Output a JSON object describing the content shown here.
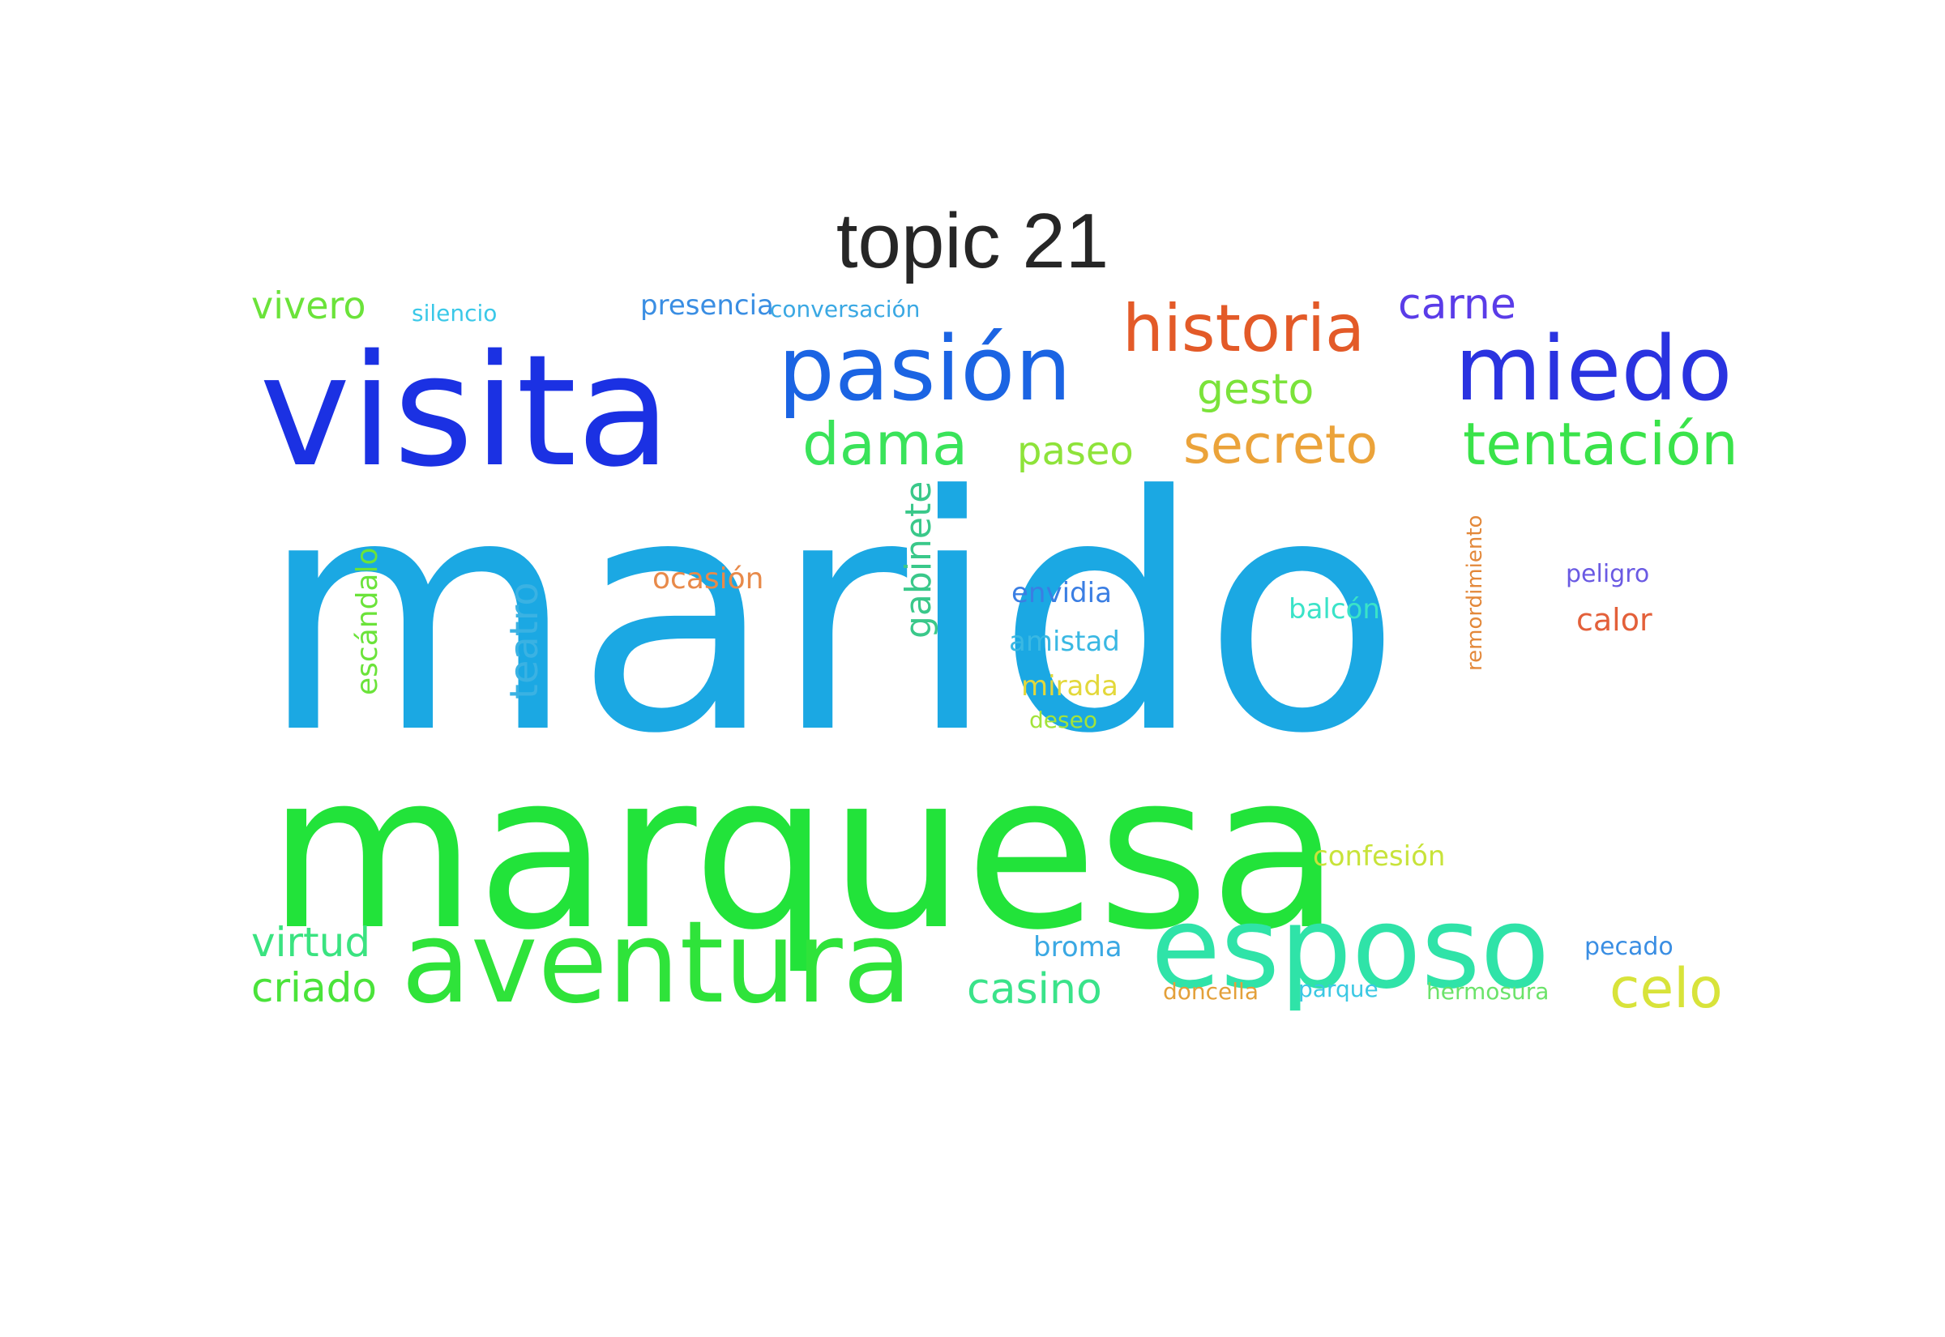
{
  "title": "topic 21",
  "words": [
    {
      "text": "marido",
      "color": "#1ba8e3"
    },
    {
      "text": "marquesa",
      "color": "#22e33a"
    },
    {
      "text": "visita",
      "color": "#1b31e3"
    },
    {
      "text": "pasión",
      "color": "#1b64e3"
    },
    {
      "text": "historia",
      "color": "#e35a28"
    },
    {
      "text": "miedo",
      "color": "#2a33e0"
    },
    {
      "text": "carne",
      "color": "#5a3ce8"
    },
    {
      "text": "gesto",
      "color": "#7be33a"
    },
    {
      "text": "dama",
      "color": "#3ae35a"
    },
    {
      "text": "paseo",
      "color": "#8ee33a"
    },
    {
      "text": "secreto",
      "color": "#eba33a"
    },
    {
      "text": "tentación",
      "color": "#3ae34a"
    },
    {
      "text": "vivero",
      "color": "#6be33a"
    },
    {
      "text": "silencio",
      "color": "#3ac8e8"
    },
    {
      "text": "presencia",
      "color": "#3a8ee3"
    },
    {
      "text": "conversación",
      "color": "#3aa8e3"
    },
    {
      "text": "ocasión",
      "color": "#e88a4a"
    },
    {
      "text": "gabinete",
      "color": "#3ac88a"
    },
    {
      "text": "envidia",
      "color": "#3a7ee3"
    },
    {
      "text": "amistad",
      "color": "#3ab8e3"
    },
    {
      "text": "mirada",
      "color": "#e3d83a"
    },
    {
      "text": "deseo",
      "color": "#a3e33a"
    },
    {
      "text": "escándalo",
      "color": "#6be33a"
    },
    {
      "text": "teatro",
      "color": "#3ab2e3"
    },
    {
      "text": "balcón",
      "color": "#3ae3c8"
    },
    {
      "text": "remordimiento",
      "color": "#e3883a"
    },
    {
      "text": "peligro",
      "color": "#6a5ae3"
    },
    {
      "text": "calor",
      "color": "#e3603a"
    },
    {
      "text": "confesión",
      "color": "#c8e33a"
    },
    {
      "text": "virtud",
      "color": "#3ae380"
    },
    {
      "text": "criado",
      "color": "#4ae33a"
    },
    {
      "text": "aventura",
      "color": "#2fe33a"
    },
    {
      "text": "esposo",
      "color": "#2fe3a8"
    },
    {
      "text": "broma",
      "color": "#3aa8e3"
    },
    {
      "text": "pecado",
      "color": "#3a8ee3"
    },
    {
      "text": "celo",
      "color": "#d8e33a"
    },
    {
      "text": "casino",
      "color": "#3ae38a"
    },
    {
      "text": "doncella",
      "color": "#e3a03a"
    },
    {
      "text": "parque",
      "color": "#3ac8e3"
    },
    {
      "text": "hermosura",
      "color": "#6be36a"
    }
  ]
}
